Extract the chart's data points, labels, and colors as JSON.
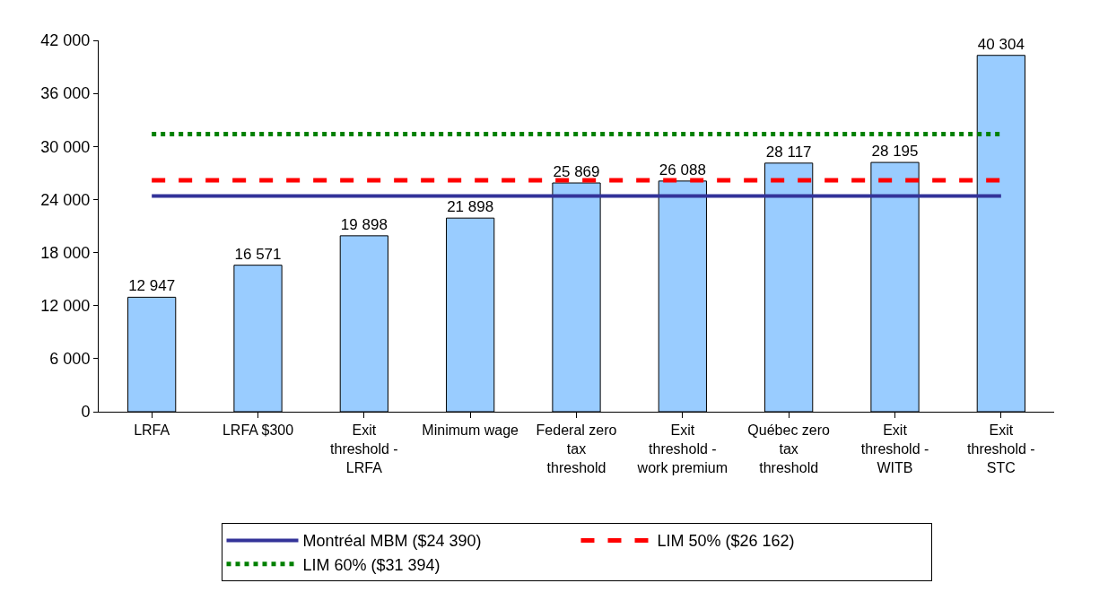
{
  "chart_data": {
    "type": "bar",
    "categories": [
      "LRFA",
      "LRFA $300",
      "Exit threshold - LRFA",
      "Minimum wage",
      "Federal zero tax threshold",
      "Exit threshold - work premium",
      "Québec zero tax threshold",
      "Exit threshold - WITB",
      "Exit threshold - STC"
    ],
    "series": [
      {
        "color": "#99ccff",
        "values": [
          12947,
          16571,
          19898,
          21898,
          25869,
          26088,
          28117,
          28195,
          40304
        ],
        "value_labels": [
          "12 947",
          "16 571",
          "19 898",
          "21 898",
          "25 869",
          "26 088",
          "28 117",
          "28 195",
          "40 304"
        ]
      },
      {
        "type": "line",
        "name": "Montréal MBM ($24 390)",
        "color": "#333399",
        "line_style": "solid",
        "values": [
          24390,
          24390,
          24390,
          24390,
          24390,
          24390,
          24390,
          24390,
          24390
        ]
      },
      {
        "type": "line",
        "name": "LIM 50% ($26 162)",
        "color": "#ff0000",
        "line_style": "dashed",
        "values": [
          26162,
          26162,
          26162,
          26162,
          26162,
          26162,
          26162,
          26162,
          26162
        ]
      },
      {
        "type": "line",
        "name": "LIM 60% ($31 394)",
        "color": "#008000",
        "line_style": "dotted",
        "values": [
          31394,
          31394,
          31394,
          31394,
          31394,
          31394,
          31394,
          31394,
          31394
        ]
      }
    ],
    "ylim": [
      0,
      42000
    ],
    "yticks": [
      {
        "value": 0,
        "label": "0"
      },
      {
        "value": 6000,
        "label": "6 000"
      },
      {
        "value": 12000,
        "label": "12 000"
      },
      {
        "value": 18000,
        "label": "18 000"
      },
      {
        "value": 24000,
        "label": "24 000"
      },
      {
        "value": 30000,
        "label": "30 000"
      },
      {
        "value": 36000,
        "label": "36 000"
      },
      {
        "value": 42000,
        "label": "42 000"
      }
    ],
    "legend": "bottom",
    "marker": "none"
  }
}
